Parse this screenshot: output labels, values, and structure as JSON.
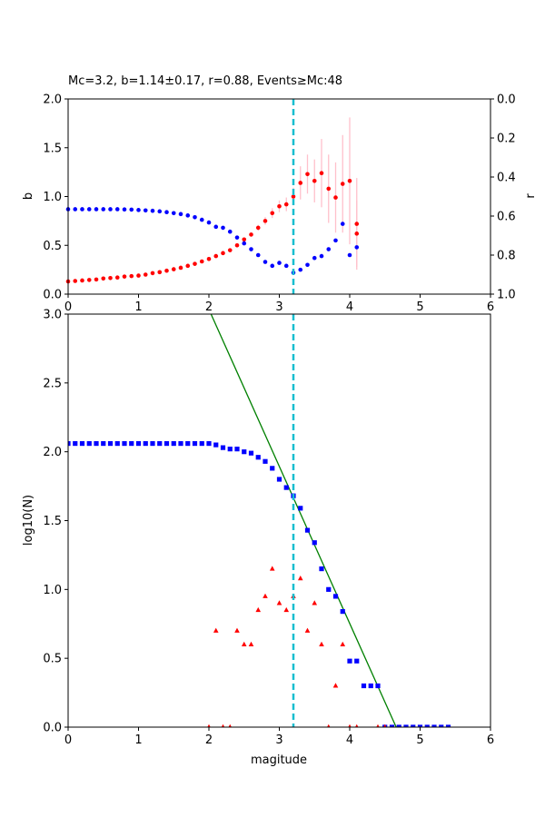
{
  "chart_data": [
    {
      "type": "scatter",
      "title": "Mc=3.2, b=1.14±0.17, r=0.88, Events≥Mc:48",
      "xlabel": "",
      "ylabel": "b",
      "ylabel_right": "r",
      "xlim": [
        0,
        6
      ],
      "ylim": [
        0,
        2
      ],
      "ylim_right": [
        1,
        0
      ],
      "x_ticks": [
        "0",
        "1",
        "2",
        "3",
        "4",
        "5",
        "6"
      ],
      "y_ticks": [
        "0.0",
        "0.5",
        "1.0",
        "1.5",
        "2.0"
      ],
      "y_ticks_right": [
        "0.0",
        "0.2",
        "0.4",
        "0.6",
        "0.8",
        "1.0"
      ],
      "vline": {
        "x": 3.2,
        "color": "#17becf",
        "style": "dashed"
      },
      "colors": {
        "b": "#ff0000",
        "r": "#0000ff",
        "errorbar": "#ffc0cb"
      },
      "series": [
        {
          "axis": "left",
          "x": [
            0.0,
            0.1,
            0.2,
            0.3,
            0.4,
            0.5,
            0.6,
            0.7,
            0.8,
            0.9,
            1.0,
            1.1,
            1.2,
            1.3,
            1.4,
            1.5,
            1.6,
            1.7,
            1.8,
            1.9,
            2.0,
            2.1,
            2.2,
            2.3,
            2.4,
            2.5,
            2.6,
            2.7,
            2.8,
            2.9,
            3.0,
            3.1,
            3.2,
            3.3,
            3.4,
            3.5,
            3.6,
            3.7,
            3.8,
            3.9,
            4.0,
            4.1
          ],
          "values": [
            0.13,
            0.135,
            0.14,
            0.145,
            0.15,
            0.16,
            0.165,
            0.17,
            0.18,
            0.185,
            0.19,
            0.2,
            0.215,
            0.225,
            0.24,
            0.255,
            0.27,
            0.29,
            0.31,
            0.335,
            0.36,
            0.39,
            0.42,
            0.45,
            0.5,
            0.56,
            0.61,
            0.68,
            0.75,
            0.83,
            0.9,
            0.92,
            1.0,
            1.14,
            1.23,
            1.16,
            1.24,
            1.08,
            0.99,
            1.13,
            1.16,
            0.62
          ],
          "errors": [
            0.003,
            0.003,
            0.003,
            0.003,
            0.003,
            0.003,
            0.004,
            0.004,
            0.004,
            0.004,
            0.004,
            0.005,
            0.005,
            0.005,
            0.005,
            0.006,
            0.006,
            0.006,
            0.007,
            0.008,
            0.008,
            0.009,
            0.01,
            0.012,
            0.015,
            0.018,
            0.02,
            0.03,
            0.04,
            0.05,
            0.06,
            0.07,
            0.09,
            0.17,
            0.2,
            0.22,
            0.35,
            0.35,
            0.36,
            0.5,
            0.65,
            0.34
          ]
        },
        {
          "axis": "right",
          "x": [
            0.0,
            0.1,
            0.2,
            0.3,
            0.4,
            0.5,
            0.6,
            0.7,
            0.8,
            0.9,
            1.0,
            1.1,
            1.2,
            1.3,
            1.4,
            1.5,
            1.6,
            1.7,
            1.8,
            1.9,
            2.0,
            2.1,
            2.2,
            2.3,
            2.4,
            2.5,
            2.6,
            2.7,
            2.8,
            2.9,
            3.0,
            3.1,
            3.2,
            3.3,
            3.4,
            3.5,
            3.6,
            3.7,
            3.8,
            3.9,
            4.0,
            4.1
          ],
          "values": [
            0.565,
            0.565,
            0.565,
            0.565,
            0.565,
            0.565,
            0.565,
            0.565,
            0.566,
            0.567,
            0.569,
            0.571,
            0.573,
            0.576,
            0.58,
            0.585,
            0.59,
            0.597,
            0.606,
            0.619,
            0.633,
            0.655,
            0.66,
            0.68,
            0.71,
            0.74,
            0.77,
            0.8,
            0.835,
            0.855,
            0.84,
            0.855,
            0.89,
            0.875,
            0.85,
            0.815,
            0.805,
            0.77,
            0.725,
            0.64,
            0.8,
            0.76
          ]
        },
        {
          "axis": "left",
          "name": "",
          "x": [
            4.1
          ],
          "values": [
            0.72
          ],
          "errors": [
            0.47
          ]
        }
      ]
    },
    {
      "type": "scatter",
      "title": "",
      "xlabel": "magitude",
      "ylabel": "log10(N)",
      "xlim": [
        0,
        6
      ],
      "ylim": [
        0,
        3
      ],
      "x_ticks": [
        "0",
        "1",
        "2",
        "3",
        "4",
        "5",
        "6"
      ],
      "y_ticks": [
        "0.0",
        "0.5",
        "1.0",
        "1.5",
        "2.0",
        "2.5",
        "3.0"
      ],
      "vline": {
        "x": 3.2,
        "color": "#17becf",
        "style": "dashed"
      },
      "fit_line": {
        "color": "#008000",
        "x": [
          2.03,
          4.66
        ],
        "values": [
          3.0,
          0.0
        ]
      },
      "colors": {
        "cumulative": "#0000ff",
        "incremental": "#ff0000"
      },
      "series": [
        {
          "marker": "square",
          "x": [
            0.0,
            0.1,
            0.2,
            0.3,
            0.4,
            0.5,
            0.6,
            0.7,
            0.8,
            0.9,
            1.0,
            1.1,
            1.2,
            1.3,
            1.4,
            1.5,
            1.6,
            1.7,
            1.8,
            1.9,
            2.0,
            2.1,
            2.2,
            2.3,
            2.4,
            2.5,
            2.6,
            2.7,
            2.8,
            2.9,
            3.0,
            3.1,
            3.2,
            3.3,
            3.4,
            3.5,
            3.6,
            3.7,
            3.8,
            3.9,
            4.0,
            4.1,
            4.2,
            4.3,
            4.4,
            4.5,
            4.6,
            4.7,
            4.8,
            4.9,
            5.0,
            5.1,
            5.2,
            5.3,
            5.4
          ],
          "values": [
            2.06,
            2.06,
            2.06,
            2.06,
            2.06,
            2.06,
            2.06,
            2.06,
            2.06,
            2.06,
            2.06,
            2.06,
            2.06,
            2.06,
            2.06,
            2.06,
            2.06,
            2.06,
            2.06,
            2.06,
            2.06,
            2.05,
            2.03,
            2.02,
            2.02,
            2.0,
            1.99,
            1.96,
            1.93,
            1.88,
            1.8,
            1.74,
            1.68,
            1.59,
            1.43,
            1.34,
            1.15,
            1.0,
            0.95,
            0.84,
            0.48,
            0.48,
            0.3,
            0.3,
            0.3,
            0.0,
            0.0,
            0.0,
            0.0,
            0.0,
            0.0,
            0.0,
            0.0,
            0.0,
            0.0
          ]
        },
        {
          "marker": "triangle",
          "x": [
            2.0,
            2.1,
            2.2,
            2.3,
            2.4,
            2.5,
            2.6,
            2.7,
            2.8,
            2.9,
            3.0,
            3.1,
            3.2,
            3.3,
            3.4,
            3.5,
            3.6,
            3.7,
            3.8,
            3.9,
            4.0,
            4.1,
            4.4,
            4.5
          ],
          "values": [
            0.0,
            0.7,
            0.0,
            0.0,
            0.7,
            0.6,
            0.6,
            0.85,
            0.95,
            1.15,
            0.9,
            0.85,
            0.95,
            1.08,
            0.7,
            0.9,
            0.6,
            0.0,
            0.3,
            0.6,
            0.0,
            0.0,
            0.0,
            0.0
          ]
        }
      ]
    }
  ]
}
